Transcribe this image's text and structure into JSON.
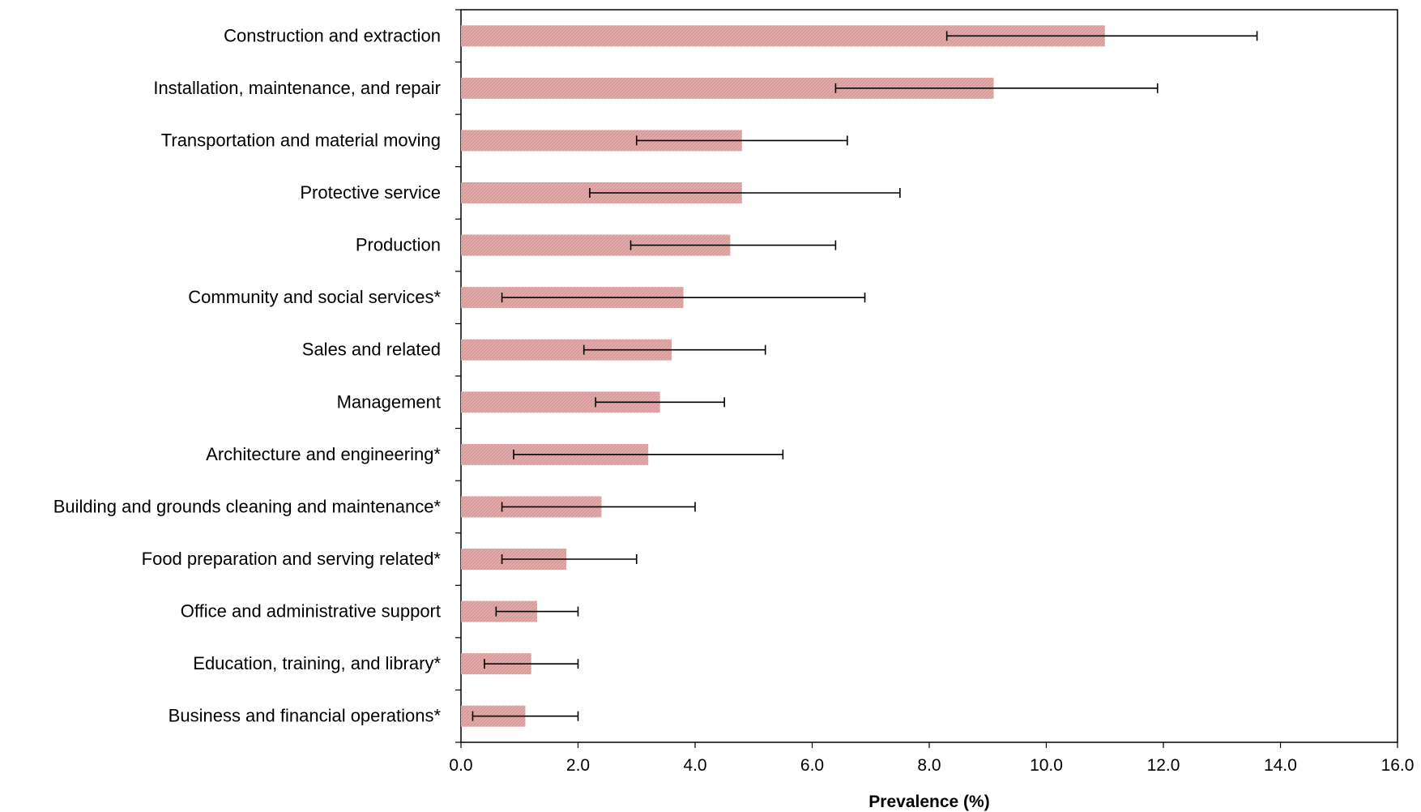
{
  "chart_data": {
    "type": "bar",
    "orientation": "horizontal",
    "categories": [
      "Construction and extraction",
      "Installation, maintenance, and repair",
      "Transportation and material moving",
      "Protective service",
      "Production",
      "Community and social services*",
      "Sales and related",
      "Management",
      "Architecture and engineering*",
      "Building and grounds cleaning and maintenance*",
      "Food preparation and serving related*",
      "Office and administrative support",
      "Education, training, and library*",
      "Business and financial operations*"
    ],
    "values": [
      11.0,
      9.1,
      4.8,
      4.8,
      4.6,
      3.8,
      3.6,
      3.4,
      3.2,
      2.4,
      1.8,
      1.3,
      1.2,
      1.1
    ],
    "error_low": [
      8.3,
      6.4,
      3.0,
      2.2,
      2.9,
      0.7,
      2.1,
      2.3,
      0.9,
      0.7,
      0.7,
      0.6,
      0.4,
      0.2
    ],
    "error_high": [
      13.6,
      11.9,
      6.6,
      7.5,
      6.4,
      6.9,
      5.2,
      4.5,
      5.5,
      4.0,
      3.0,
      2.0,
      2.0,
      2.0
    ],
    "xlabel": "Prevalence (%)",
    "xlim": [
      0,
      16
    ],
    "xticks": [
      "0.0",
      "2.0",
      "4.0",
      "6.0",
      "8.0",
      "10.0",
      "12.0",
      "14.0",
      "16.0"
    ],
    "bar_color": "#dca0a0",
    "grid": false
  }
}
